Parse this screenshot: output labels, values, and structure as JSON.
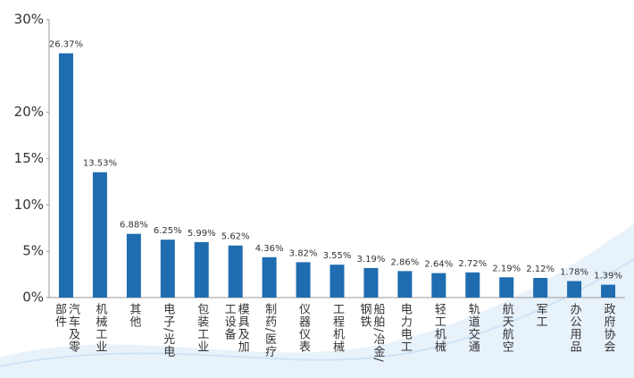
{
  "chart_data": {
    "type": "bar",
    "categories": [
      "汽车及零部件",
      "机械工业",
      "其他",
      "电子/光电",
      "包装工业",
      "模具及加工设备",
      "制药/医疗",
      "仪器仪表",
      "工程机械",
      "船舶/冶金/钢铁",
      "电力电工",
      "轻工机械",
      "轨道交通",
      "航天航空",
      "军工",
      "办公用品",
      "政府协会"
    ],
    "values": [
      26.37,
      13.53,
      6.88,
      6.25,
      5.99,
      5.62,
      4.36,
      3.82,
      3.55,
      3.19,
      2.86,
      2.64,
      2.72,
      2.19,
      2.12,
      1.78,
      1.39
    ],
    "value_labels": [
      "26.37%",
      "13.53%",
      "6.88%",
      "6.25%",
      "5.99%",
      "5.62%",
      "4.36%",
      "3.82%",
      "3.55%",
      "3.19%",
      "2.86%",
      "2.64%",
      "2.72%",
      "2.19%",
      "2.12%",
      "1.78%",
      "1.39%"
    ],
    "color": "#1f6db0",
    "ylim": [
      0,
      30
    ],
    "yticks": [
      {
        "value": 0,
        "label": "0%"
      },
      {
        "value": 5,
        "label": "5%"
      },
      {
        "value": 10,
        "label": "10%"
      },
      {
        "value": 15,
        "label": "15%"
      },
      {
        "value": 20,
        "label": "20%"
      },
      {
        "value": 30,
        "label": "30%"
      }
    ],
    "grid": false
  }
}
